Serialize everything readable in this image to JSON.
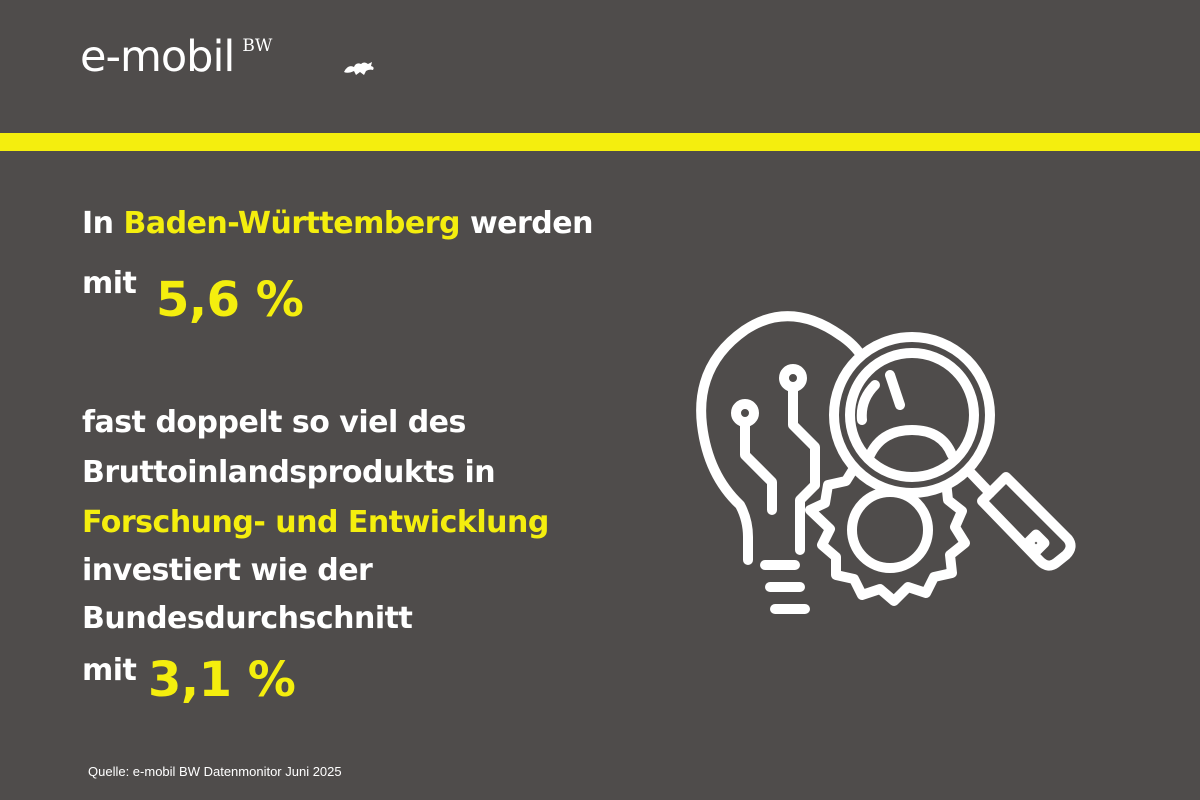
{
  "logo": {
    "text": "e-mobil",
    "suffix": "BW"
  },
  "colors": {
    "background": "#4f4c4b",
    "accent": "#f4ee0e",
    "text": "#ffffff"
  },
  "headline": {
    "line1_prefix": "In",
    "line1_highlight": "Baden-Württemberg",
    "line1_suffix": "werden",
    "line2_prefix": "mit",
    "value_bw": "5,6 %"
  },
  "body": {
    "line1": "fast doppelt so viel des",
    "line2": "Bruttoinlandsprodukts in",
    "line3_highlight": "Forschung- und Entwicklung",
    "line4": "investiert wie der",
    "line5": "Bundesdurchschnitt",
    "line6_prefix": "mit",
    "value_federal": "3,1 %"
  },
  "source": "Quelle: e-mobil BW Datenmonitor Juni 2025",
  "illustration": {
    "icon": "lightbulb-gear-magnifier-icon"
  }
}
